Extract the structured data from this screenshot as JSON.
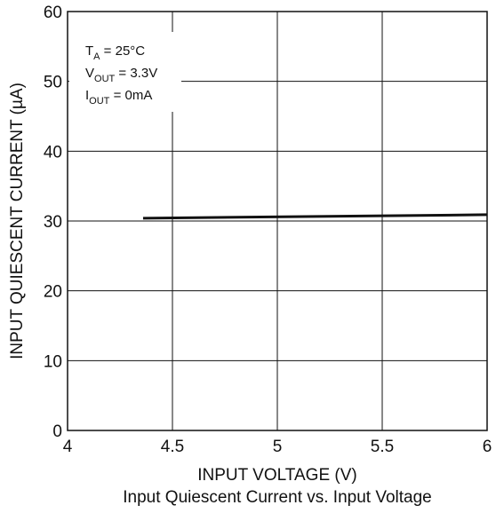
{
  "chart_data": {
    "type": "line",
    "title": "",
    "caption": "Input Quiescent Current vs. Input Voltage",
    "xlabel": "INPUT VOLTAGE (V)",
    "ylabel": "INPUT QUIESCENT CURRENT (µA)",
    "xlim": [
      4,
      6
    ],
    "ylim": [
      0,
      60
    ],
    "x_ticks": [
      4,
      4.5,
      5,
      5.5,
      6
    ],
    "x_tick_labels": [
      "4",
      "4.5",
      "5",
      "5.5",
      "6"
    ],
    "y_ticks": [
      0,
      10,
      20,
      30,
      40,
      50,
      60
    ],
    "y_tick_labels": [
      "0",
      "10",
      "20",
      "30",
      "40",
      "50",
      "60"
    ],
    "grid": true,
    "series": [
      {
        "x": [
          4.36,
          6.0
        ],
        "y": [
          30.4,
          30.9
        ]
      }
    ],
    "conditions": [
      {
        "main": "T",
        "sub": "A",
        "rest": " = 25°C"
      },
      {
        "main": "V",
        "sub": "OUT",
        "rest": " = 3.3V"
      },
      {
        "main": "I",
        "sub": "OUT",
        "rest": " = 0mA"
      }
    ],
    "colors": {
      "line": "#111111",
      "grid": "#111111",
      "background": "#ffffff"
    }
  }
}
